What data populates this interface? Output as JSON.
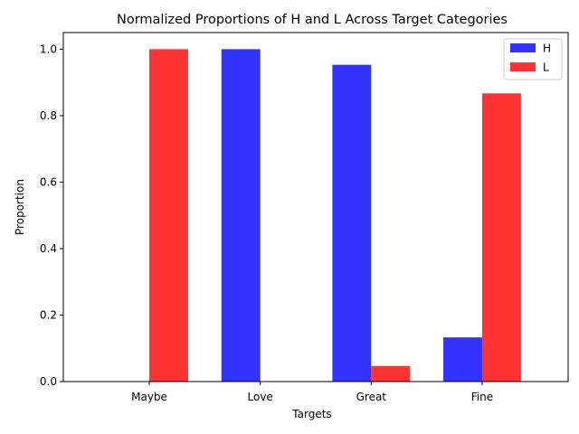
{
  "chart_data": {
    "type": "bar",
    "title": "Normalized Proportions of H and L Across Target Categories",
    "xlabel": "Targets",
    "ylabel": "Proportion",
    "categories": [
      "Maybe",
      "Love",
      "Great",
      "Fine"
    ],
    "series": [
      {
        "name": "H",
        "color": "#3333ff",
        "values": [
          0.0,
          1.0,
          0.953,
          0.133
        ]
      },
      {
        "name": "L",
        "color": "#ff3333",
        "values": [
          1.0,
          0.0,
          0.047,
          0.867
        ]
      }
    ],
    "ylim": [
      0,
      1.05
    ],
    "yticks": [
      0.0,
      0.2,
      0.4,
      0.6,
      0.8,
      1.0
    ],
    "ytick_labels": [
      "0.0",
      "0.2",
      "0.4",
      "0.6",
      "0.8",
      "1.0"
    ],
    "grid": false,
    "legend_position": "top-right"
  }
}
